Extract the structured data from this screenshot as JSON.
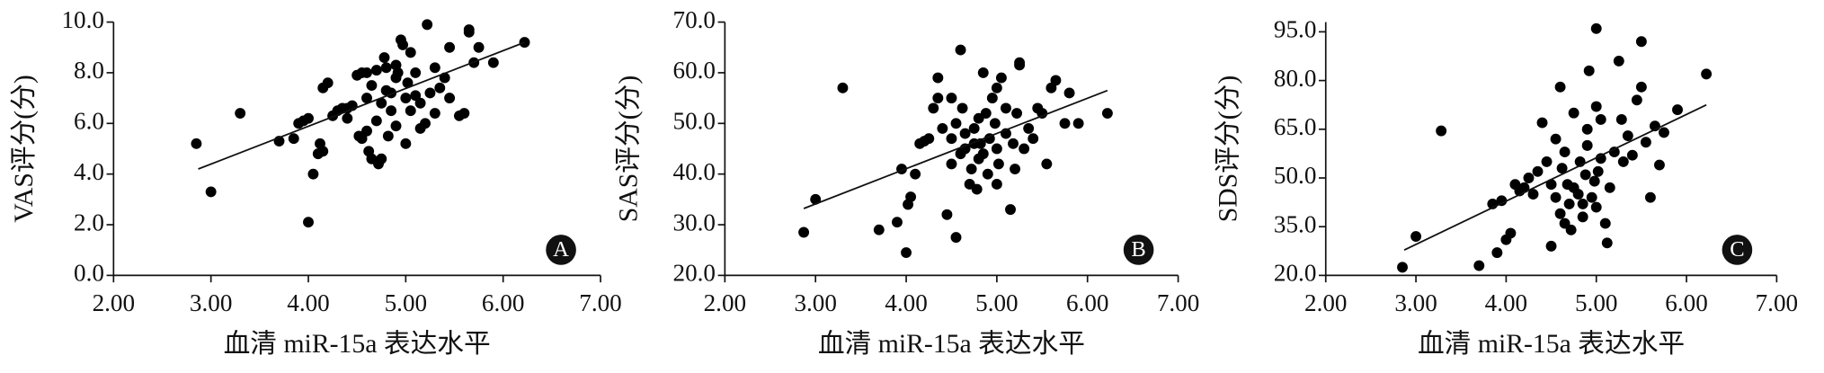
{
  "chart_data": [
    {
      "type": "scatter",
      "panel_label": "A",
      "ylabel": "VAS评分(分)",
      "xlabel": "血清 miR-15a 表达水平",
      "color": "#000000",
      "xlim": [
        2,
        7
      ],
      "ylim": [
        0,
        10
      ],
      "xticks": [
        {
          "value": 2,
          "label": "2.00"
        },
        {
          "value": 3,
          "label": "3.00"
        },
        {
          "value": 4,
          "label": "4.00"
        },
        {
          "value": 5,
          "label": "5.00"
        },
        {
          "value": 6,
          "label": "6.00"
        },
        {
          "value": 7,
          "label": "7.00"
        }
      ],
      "yticks": [
        {
          "value": 0,
          "label": "0.0"
        },
        {
          "value": 2,
          "label": "2.0"
        },
        {
          "value": 4,
          "label": "4.0"
        },
        {
          "value": 6,
          "label": "6.0"
        },
        {
          "value": 8,
          "label": "8.0"
        },
        {
          "value": 10,
          "label": "10.0"
        }
      ],
      "x": [
        2.85,
        3.0,
        3.3,
        3.7,
        3.85,
        3.9,
        3.95,
        4.0,
        4.0,
        4.05,
        4.1,
        4.12,
        4.15,
        4.15,
        4.2,
        4.25,
        4.3,
        4.35,
        4.4,
        4.45,
        4.5,
        4.52,
        4.55,
        4.55,
        4.6,
        4.6,
        4.62,
        4.65,
        4.65,
        4.7,
        4.7,
        4.72,
        4.75,
        4.75,
        4.78,
        4.8,
        4.8,
        4.82,
        4.85,
        4.85,
        4.9,
        4.9,
        4.92,
        4.95,
        4.97,
        5.0,
        5.0,
        5.02,
        5.05,
        5.05,
        5.1,
        5.1,
        5.15,
        5.15,
        5.2,
        5.22,
        5.25,
        5.3,
        5.3,
        5.35,
        5.4,
        5.45,
        5.45,
        5.55,
        5.6,
        5.65,
        5.65,
        5.7,
        5.75,
        5.9,
        6.22,
        4.4,
        4.6,
        4.9
      ],
      "values": [
        5.2,
        3.3,
        6.4,
        5.3,
        5.4,
        6.0,
        6.1,
        6.2,
        2.1,
        4.0,
        4.8,
        5.2,
        4.9,
        7.4,
        7.6,
        6.3,
        6.5,
        6.6,
        6.2,
        6.7,
        7.9,
        5.5,
        5.4,
        8.0,
        7.0,
        5.7,
        4.9,
        4.6,
        7.5,
        8.1,
        6.1,
        4.4,
        4.6,
        6.8,
        8.6,
        8.2,
        7.3,
        5.5,
        7.2,
        6.5,
        8.3,
        5.9,
        8.0,
        9.3,
        9.1,
        5.2,
        7.0,
        7.6,
        8.8,
        6.5,
        7.1,
        8.0,
        5.8,
        6.8,
        6.0,
        9.9,
        7.2,
        6.4,
        8.2,
        7.4,
        7.8,
        7.0,
        9.0,
        6.3,
        6.4,
        9.7,
        9.6,
        8.4,
        9.0,
        8.4,
        9.2,
        6.6,
        8.0,
        7.8
      ],
      "trendline": {
        "x": [
          2.87,
          6.22
        ],
        "values": [
          4.2,
          9.2
        ]
      }
    },
    {
      "type": "scatter",
      "panel_label": "B",
      "ylabel": "SAS评分(分)",
      "xlabel": "血清 miR-15a 表达水平",
      "color": "#000000",
      "xlim": [
        2,
        7
      ],
      "ylim": [
        20,
        70
      ],
      "xticks": [
        {
          "value": 2,
          "label": "2.00"
        },
        {
          "value": 3,
          "label": "3.00"
        },
        {
          "value": 4,
          "label": "4.00"
        },
        {
          "value": 5,
          "label": "5.00"
        },
        {
          "value": 6,
          "label": "6.00"
        },
        {
          "value": 7,
          "label": "7.00"
        }
      ],
      "yticks": [
        {
          "value": 20,
          "label": "20.0"
        },
        {
          "value": 30,
          "label": "30.0"
        },
        {
          "value": 40,
          "label": "40.0"
        },
        {
          "value": 50,
          "label": "50.0"
        },
        {
          "value": 60,
          "label": "60.0"
        },
        {
          "value": 70,
          "label": "70.0"
        }
      ],
      "x": [
        2.87,
        3.0,
        3.3,
        3.7,
        3.9,
        3.95,
        4.0,
        4.02,
        4.05,
        4.1,
        4.15,
        4.2,
        4.25,
        4.3,
        4.35,
        4.35,
        4.4,
        4.45,
        4.5,
        4.5,
        4.55,
        4.55,
        4.6,
        4.62,
        4.65,
        4.65,
        4.7,
        4.72,
        4.75,
        4.78,
        4.8,
        4.8,
        4.82,
        4.85,
        4.88,
        4.9,
        4.92,
        4.95,
        4.98,
        5.0,
        5.0,
        5.02,
        5.05,
        5.1,
        5.1,
        5.15,
        5.18,
        5.2,
        5.22,
        5.25,
        5.25,
        5.3,
        5.35,
        5.4,
        5.45,
        5.5,
        5.55,
        5.6,
        5.65,
        5.75,
        5.8,
        5.9,
        6.22,
        4.6,
        4.75,
        4.85,
        5.0,
        4.5
      ],
      "values": [
        28.5,
        35,
        57,
        29,
        30.5,
        41,
        24.5,
        34,
        35.5,
        40,
        46,
        46.5,
        47,
        53,
        59,
        55,
        49,
        32,
        42,
        55,
        27.5,
        50,
        64.5,
        53,
        45,
        48,
        38,
        41,
        49,
        37,
        43,
        51,
        46,
        44,
        52,
        40,
        47,
        55,
        50,
        45,
        57,
        42,
        59,
        48,
        53,
        33,
        46,
        41,
        52,
        61.5,
        62,
        45,
        49,
        47,
        53,
        52,
        42,
        57,
        58.5,
        50,
        56,
        50,
        52,
        44,
        46,
        60,
        38,
        47
      ],
      "trendline": {
        "x": [
          2.87,
          6.22
        ],
        "values": [
          33.2,
          56.5
        ]
      }
    },
    {
      "type": "scatter",
      "panel_label": "C",
      "ylabel": "SDS评分(分)",
      "xlabel": "血清 miR-15a 表达水平",
      "color": "#000000",
      "xlim": [
        2,
        7
      ],
      "ylim": [
        20,
        98
      ],
      "xticks": [
        {
          "value": 2,
          "label": "2.00"
        },
        {
          "value": 3,
          "label": "3.00"
        },
        {
          "value": 4,
          "label": "4.00"
        },
        {
          "value": 5,
          "label": "5.00"
        },
        {
          "value": 6,
          "label": "6.00"
        },
        {
          "value": 7,
          "label": "7.00"
        }
      ],
      "yticks": [
        {
          "value": 20,
          "label": "20.0"
        },
        {
          "value": 35,
          "label": "35.0"
        },
        {
          "value": 50,
          "label": "50.0"
        },
        {
          "value": 65,
          "label": "65.0"
        },
        {
          "value": 80,
          "label": "80.0"
        },
        {
          "value": 95,
          "label": "95.0"
        }
      ],
      "x": [
        2.85,
        3.0,
        3.28,
        3.7,
        3.85,
        3.9,
        3.95,
        4.0,
        4.05,
        4.1,
        4.15,
        4.2,
        4.25,
        4.3,
        4.35,
        4.4,
        4.45,
        4.5,
        4.5,
        4.55,
        4.55,
        4.6,
        4.6,
        4.62,
        4.65,
        4.65,
        4.7,
        4.72,
        4.75,
        4.75,
        4.8,
        4.82,
        4.85,
        4.88,
        4.9,
        4.9,
        4.92,
        4.95,
        4.98,
        5.0,
        5.0,
        5.02,
        5.05,
        5.05,
        5.1,
        5.12,
        5.15,
        5.2,
        5.25,
        5.28,
        5.3,
        5.35,
        5.4,
        5.45,
        5.5,
        5.5,
        5.55,
        5.6,
        5.65,
        5.7,
        5.75,
        5.9,
        6.22,
        4.68,
        4.85,
        5.0
      ],
      "values": [
        22.5,
        32,
        64.5,
        23,
        42,
        27,
        43,
        31,
        33,
        48,
        46,
        47,
        50,
        45,
        52,
        67,
        55,
        29,
        48,
        44,
        62,
        78,
        39,
        53,
        36,
        58,
        42,
        34,
        47,
        70,
        45,
        55,
        38,
        51,
        60,
        65,
        83,
        44,
        49,
        96,
        72,
        52,
        68,
        56,
        36,
        30,
        47,
        58,
        86,
        68,
        55,
        63,
        57,
        74,
        92,
        78,
        61,
        44,
        66,
        54,
        64,
        71,
        82,
        48,
        42,
        41
      ],
      "trendline": {
        "x": [
          2.87,
          6.22
        ],
        "values": [
          27.8,
          72.5
        ]
      }
    }
  ]
}
